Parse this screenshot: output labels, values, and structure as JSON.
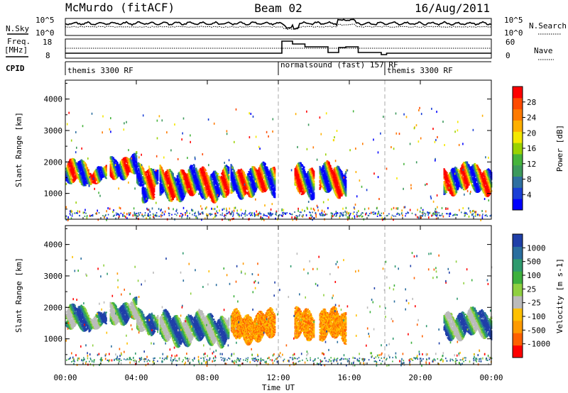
{
  "header": {
    "station": "McMurdo (fitACF)",
    "beam": "Beam 02",
    "date": "16/Aug/2011"
  },
  "top_panel": {
    "left_label": "N.Sky",
    "right_label": "N.Search",
    "left_ticks": [
      "10^5",
      "10^0"
    ],
    "right_ticks": [
      "10^5",
      "10^0"
    ]
  },
  "freq_panel": {
    "left_label": "Freq.",
    "left_unit": "[MHz]",
    "right_label": "Nave",
    "left_ticks": [
      "18",
      "8"
    ],
    "right_ticks": [
      "60",
      "0"
    ]
  },
  "cpid": {
    "label": "CPID",
    "segments": [
      {
        "start_hour": 0,
        "text": "themis 3300 RF"
      },
      {
        "start_hour": 12,
        "text": "normalsound (fast) 157 RF"
      },
      {
        "start_hour": 18,
        "text": "themis 3300 RF"
      }
    ]
  },
  "chart_data": [
    {
      "type": "heatmap",
      "title": "Power",
      "ylabel": "Slant Range [km]",
      "xlabel": "Time UT",
      "xlim": [
        0,
        24
      ],
      "ylim": [
        180,
        4600
      ],
      "x_ticks": [
        "00:00",
        "04:00",
        "08:00",
        "12:00",
        "16:00",
        "20:00",
        "00:00"
      ],
      "y_ticks": [
        1000,
        2000,
        3000,
        4000
      ],
      "colorbar": {
        "label": "Power [dB]",
        "ticks": [
          "4",
          "8",
          "12",
          "16",
          "20",
          "24",
          "28"
        ],
        "colors": [
          "#0000ff",
          "#1a3fd6",
          "#2f70a0",
          "#3d9a5c",
          "#46b43c",
          "#9ad200",
          "#f4e800",
          "#ffb000",
          "#ff7a00",
          "#ff4a00",
          "#ff0000"
        ]
      },
      "echo_regions": [
        {
          "t0": 0.0,
          "t1": 1.3,
          "r0": 1200,
          "r1": 2000
        },
        {
          "t0": 1.3,
          "t1": 2.3,
          "r0": 1300,
          "r1": 1800
        },
        {
          "t0": 2.5,
          "t1": 4.0,
          "r0": 1500,
          "r1": 2200
        },
        {
          "t0": 4.0,
          "t1": 5.2,
          "r0": 1200,
          "r1": 1900
        },
        {
          "t0": 4.3,
          "t1": 5.0,
          "r0": 800,
          "r1": 1300
        },
        {
          "t0": 5.3,
          "t1": 9.2,
          "r0": 800,
          "r1": 1800
        },
        {
          "t0": 9.3,
          "t1": 11.8,
          "r0": 900,
          "r1": 1850
        },
        {
          "t0": 12.9,
          "t1": 14.0,
          "r0": 900,
          "r1": 1900
        },
        {
          "t0": 14.3,
          "t1": 15.8,
          "r0": 900,
          "r1": 1900
        },
        {
          "t0": 21.3,
          "t1": 24.0,
          "r0": 1000,
          "r1": 1900
        }
      ]
    },
    {
      "type": "heatmap",
      "title": "Velocity",
      "ylabel": "Slant Range [km]",
      "xlabel": "Time UT",
      "xlim": [
        0,
        24
      ],
      "ylim": [
        180,
        4600
      ],
      "x_ticks": [
        "00:00",
        "04:00",
        "08:00",
        "12:00",
        "16:00",
        "20:00",
        "00:00"
      ],
      "y_ticks": [
        1000,
        2000,
        3000,
        4000
      ],
      "colorbar": {
        "label": "Velocity [m s-1]",
        "ticks": [
          "1000",
          "500",
          "100",
          "25",
          "-25",
          "-100",
          "-500",
          "-1000"
        ],
        "colors": [
          "#1f3fa8",
          "#2a6e9e",
          "#2f9a6e",
          "#3db03d",
          "#8fd040",
          "#bbbbbb",
          "#ffc000",
          "#ff9a00",
          "#ff6000",
          "#ff0000"
        ]
      },
      "echo_regions": [
        {
          "t0": 0.0,
          "t1": 1.3,
          "r0": 1200,
          "r1": 2000
        },
        {
          "t0": 1.3,
          "t1": 2.3,
          "r0": 1300,
          "r1": 1800
        },
        {
          "t0": 2.5,
          "t1": 4.0,
          "r0": 1500,
          "r1": 2200
        },
        {
          "t0": 4.0,
          "t1": 5.2,
          "r0": 1200,
          "r1": 1900
        },
        {
          "t0": 5.3,
          "t1": 9.2,
          "r0": 800,
          "r1": 1800
        },
        {
          "t0": 9.3,
          "t1": 11.8,
          "r0": 900,
          "r1": 1850
        },
        {
          "t0": 12.9,
          "t1": 14.0,
          "r0": 900,
          "r1": 1900
        },
        {
          "t0": 14.3,
          "t1": 15.8,
          "r0": 900,
          "r1": 1900
        },
        {
          "t0": 21.3,
          "t1": 24.0,
          "r0": 1000,
          "r1": 1900
        }
      ]
    }
  ]
}
